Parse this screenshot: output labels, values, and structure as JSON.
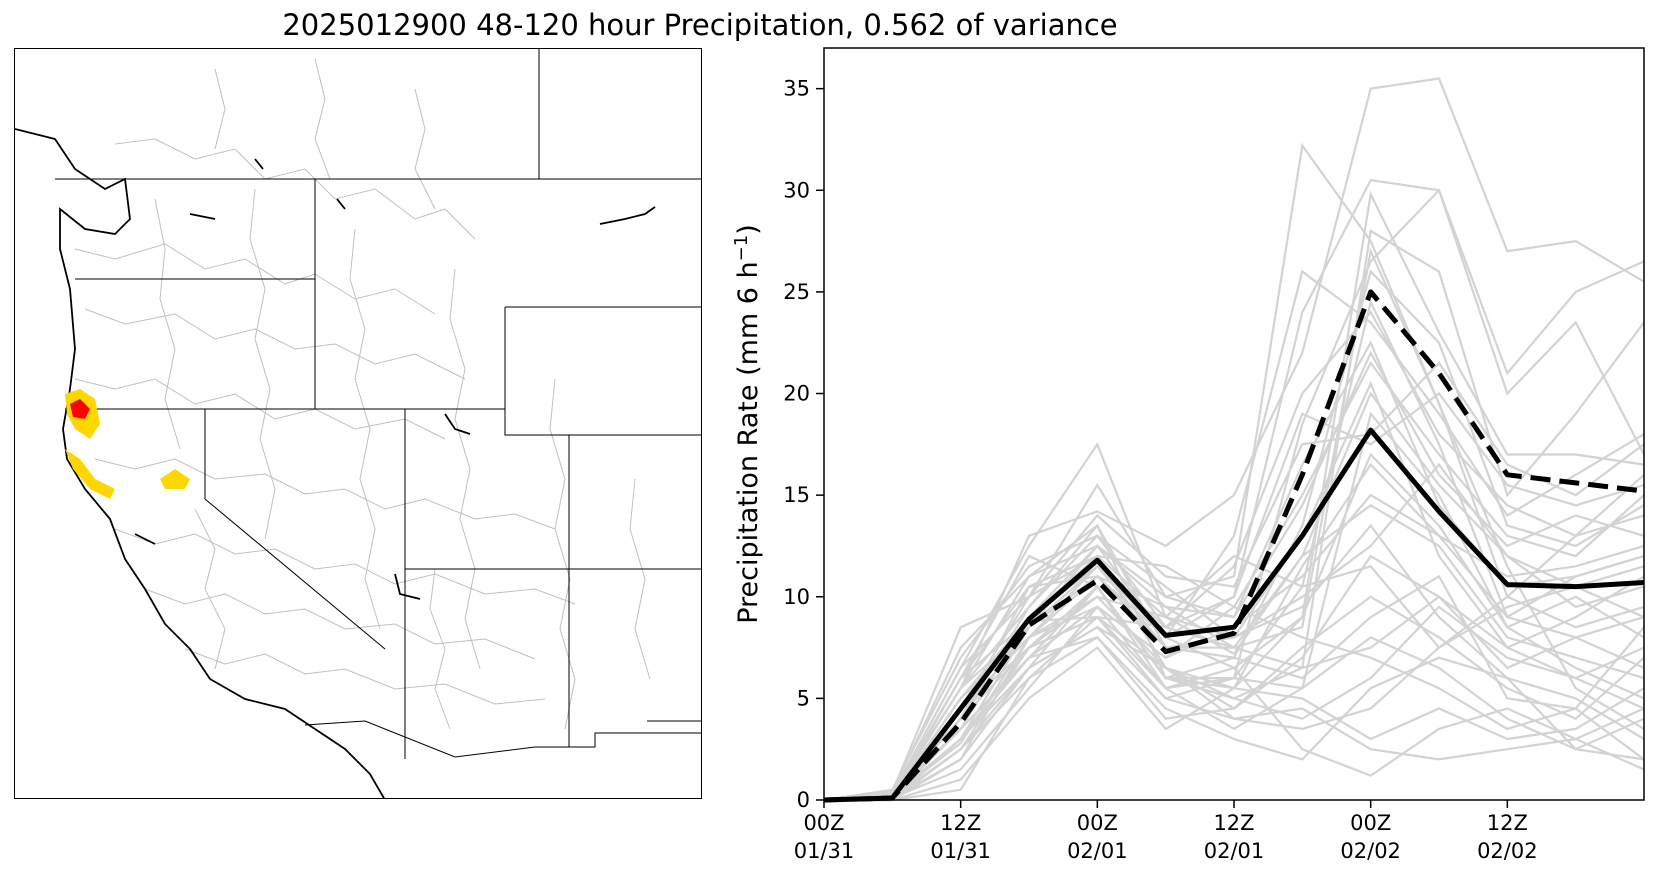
{
  "figure": {
    "title": "2025012900 48-120 hour Precipitation, 0.562 of variance"
  },
  "map": {
    "description_colors": {
      "high_anomaly": "#ff0000",
      "moderate_anomaly": "#ffd700",
      "basin_lines": "#c0c0c0",
      "coast_and_borders": "#000000"
    }
  },
  "chart_data": {
    "type": "line",
    "title": "",
    "xlabel": "",
    "ylabel": "Precipitation Rate (mm 6 h",
    "ylabel_superscript": "−1",
    "ylabel_close": ")",
    "ylim": [
      0,
      37
    ],
    "xlim": [
      0,
      18
    ],
    "yticks": [
      0,
      5,
      10,
      15,
      20,
      25,
      30,
      35
    ],
    "xticks": [
      {
        "x": 0,
        "line1": "00Z",
        "line2": "01/31"
      },
      {
        "x": 3,
        "line1": "12Z",
        "line2": "01/31"
      },
      {
        "x": 6,
        "line1": "00Z",
        "line2": "02/01"
      },
      {
        "x": 9,
        "line1": "12Z",
        "line2": "02/01"
      },
      {
        "x": 12,
        "line1": "00Z",
        "line2": "02/02"
      },
      {
        "x": 15,
        "line1": "12Z",
        "line2": "02/02"
      }
    ],
    "x": [
      0,
      1.5,
      3,
      4.5,
      6,
      7.5,
      9,
      10.5,
      12,
      13.5,
      15,
      16.5,
      18
    ],
    "series": [
      {
        "name": "ensemble mean",
        "style": "solid",
        "color": "#000000",
        "values": [
          0,
          0.1,
          4.5,
          8.9,
          11.8,
          8.1,
          8.5,
          13.0,
          18.2,
          14.2,
          10.6,
          10.5,
          10.7
        ]
      },
      {
        "name": "principal component",
        "style": "dashed",
        "color": "#000000",
        "values": [
          0,
          0.1,
          3.8,
          8.6,
          10.8,
          7.3,
          8.2,
          16.0,
          25.0,
          21.0,
          16.0,
          15.6,
          15.2
        ]
      }
    ],
    "members": [
      [
        0,
        0.3,
        6.5,
        12.5,
        17.5,
        9.0,
        7.2,
        12.0,
        20.0,
        15.5,
        12.0,
        10.5,
        11.5
      ],
      [
        0,
        0.4,
        8.5,
        10.0,
        15.5,
        10.0,
        11.0,
        32.2,
        27.5,
        19.5,
        10.0,
        13.0,
        14.0
      ],
      [
        0,
        0.2,
        5.5,
        13.0,
        14.2,
        12.5,
        15.0,
        22.0,
        35.0,
        35.5,
        27.0,
        27.5,
        25.5
      ],
      [
        0,
        0.5,
        7.0,
        11.5,
        13.0,
        8.5,
        10.0,
        24.0,
        30.5,
        30.0,
        21.0,
        25.0,
        26.5
      ],
      [
        0,
        0.1,
        3.0,
        7.5,
        9.0,
        6.5,
        5.5,
        9.0,
        29.8,
        23.0,
        17.0,
        17.0,
        16.5
      ],
      [
        0,
        0.3,
        6.0,
        12.0,
        10.5,
        6.0,
        5.0,
        6.5,
        28.0,
        26.0,
        15.0,
        19.0,
        23.5
      ],
      [
        0,
        0.2,
        5.0,
        9.0,
        12.5,
        8.0,
        13.0,
        26.0,
        23.5,
        19.0,
        14.0,
        16.0,
        18.0
      ],
      [
        0,
        0.0,
        2.5,
        6.5,
        8.5,
        5.0,
        6.0,
        18.5,
        26.5,
        30.0,
        20.0,
        23.5,
        17.0
      ],
      [
        0,
        0.4,
        4.0,
        10.5,
        12.0,
        11.5,
        9.5,
        15.0,
        21.5,
        17.0,
        13.0,
        12.0,
        15.0
      ],
      [
        0,
        0.1,
        1.5,
        5.5,
        9.5,
        7.0,
        8.5,
        11.0,
        15.0,
        13.0,
        9.0,
        11.0,
        12.0
      ],
      [
        0,
        0.2,
        2.8,
        8.0,
        10.0,
        6.5,
        4.5,
        7.0,
        12.0,
        10.0,
        6.5,
        8.0,
        9.0
      ],
      [
        0,
        0.0,
        0.5,
        6.0,
        8.0,
        4.5,
        3.0,
        2.0,
        5.5,
        7.0,
        6.0,
        2.5,
        4.0
      ],
      [
        0,
        0.3,
        3.5,
        7.0,
        9.5,
        5.5,
        6.0,
        10.5,
        24.5,
        17.5,
        9.0,
        8.0,
        6.5
      ],
      [
        0,
        0.1,
        4.5,
        8.0,
        11.0,
        9.5,
        7.5,
        8.5,
        27.0,
        19.5,
        11.5,
        5.5,
        3.5
      ],
      [
        0,
        0.2,
        5.5,
        9.5,
        13.5,
        7.5,
        7.0,
        6.0,
        9.0,
        11.0,
        5.0,
        4.5,
        2.0
      ],
      [
        0,
        0.0,
        2.0,
        6.5,
        10.5,
        6.0,
        5.5,
        5.0,
        3.0,
        4.5,
        3.0,
        3.5,
        5.5
      ],
      [
        0,
        0.1,
        3.0,
        8.5,
        11.5,
        8.0,
        6.5,
        2.5,
        1.2,
        3.5,
        4.5,
        3.0,
        1.5
      ],
      [
        0,
        0.3,
        6.0,
        8.8,
        9.0,
        5.5,
        6.5,
        9.0,
        17.0,
        13.5,
        8.5,
        10.0,
        8.0
      ],
      [
        0,
        0.2,
        4.0,
        7.5,
        10.0,
        9.0,
        8.0,
        13.0,
        20.5,
        12.0,
        7.5,
        9.0,
        11.0
      ],
      [
        0,
        0.1,
        5.0,
        9.0,
        12.0,
        6.5,
        5.0,
        4.0,
        6.0,
        9.5,
        7.0,
        6.0,
        4.5
      ],
      [
        0,
        0.4,
        7.5,
        11.0,
        12.5,
        9.5,
        9.0,
        14.5,
        22.0,
        16.0,
        12.5,
        14.0,
        13.0
      ],
      [
        0,
        0.0,
        3.0,
        7.0,
        8.0,
        4.0,
        4.5,
        7.5,
        10.0,
        8.0,
        5.5,
        4.0,
        7.0
      ],
      [
        0,
        0.2,
        4.5,
        10.0,
        14.0,
        11.0,
        10.5,
        17.5,
        18.0,
        21.5,
        16.5,
        15.0,
        17.5
      ],
      [
        0,
        0.1,
        2.5,
        6.0,
        9.0,
        5.0,
        4.0,
        3.5,
        4.5,
        7.5,
        10.0,
        8.5,
        9.5
      ],
      [
        0,
        0.3,
        5.5,
        8.5,
        11.0,
        7.5,
        7.5,
        12.0,
        14.5,
        12.5,
        8.0,
        7.0,
        6.0
      ],
      [
        0,
        0.2,
        4.0,
        9.5,
        13.0,
        10.5,
        8.0,
        9.5,
        13.5,
        9.0,
        6.0,
        5.0,
        3.0
      ],
      [
        0,
        0.1,
        3.5,
        7.0,
        10.5,
        6.0,
        6.0,
        5.5,
        8.0,
        6.5,
        4.0,
        2.5,
        2.0
      ],
      [
        0,
        0.2,
        5.0,
        8.0,
        11.5,
        8.5,
        11.5,
        20.0,
        24.0,
        18.0,
        14.5,
        13.0,
        16.0
      ],
      [
        0,
        0.0,
        1.0,
        5.0,
        7.5,
        3.5,
        5.5,
        11.5,
        16.5,
        13.0,
        11.0,
        11.5,
        12.5
      ],
      [
        0,
        0.3,
        6.5,
        10.0,
        12.0,
        9.0,
        12.0,
        10.5,
        11.5,
        7.5,
        9.5,
        10.5,
        9.0
      ],
      [
        0,
        0.1,
        2.0,
        8.0,
        9.5,
        7.0,
        9.5,
        8.0,
        7.0,
        5.5,
        3.5,
        4.5,
        8.5
      ],
      [
        0,
        0.2,
        4.5,
        7.5,
        10.5,
        5.5,
        3.5,
        5.5,
        19.0,
        15.0,
        8.5,
        6.5,
        5.0
      ],
      [
        0,
        0.1,
        3.5,
        9.0,
        11.5,
        7.5,
        8.0,
        10.0,
        12.5,
        16.5,
        12.0,
        9.5,
        10.5
      ],
      [
        0,
        0.2,
        5.5,
        11.0,
        13.5,
        6.0,
        7.0,
        13.5,
        26.0,
        22.5,
        13.5,
        12.5,
        14.5
      ],
      [
        0,
        0.1,
        2.5,
        7.5,
        9.0,
        8.5,
        7.5,
        6.5,
        7.5,
        10.0,
        7.5,
        6.0,
        7.5
      ],
      [
        0,
        0.3,
        4.0,
        8.5,
        12.5,
        10.0,
        9.0,
        16.5,
        22.5,
        14.5,
        10.5,
        11.0,
        12.0
      ],
      [
        0,
        0.2,
        3.0,
        6.5,
        8.5,
        6.5,
        4.0,
        4.5,
        2.5,
        2.0,
        2.5,
        3.0,
        4.5
      ],
      [
        0,
        0.1,
        6.0,
        10.5,
        11.0,
        8.0,
        10.0,
        19.0,
        17.5,
        20.0,
        15.5,
        14.5,
        15.5
      ]
    ],
    "member_color": "#d3d3d3"
  }
}
